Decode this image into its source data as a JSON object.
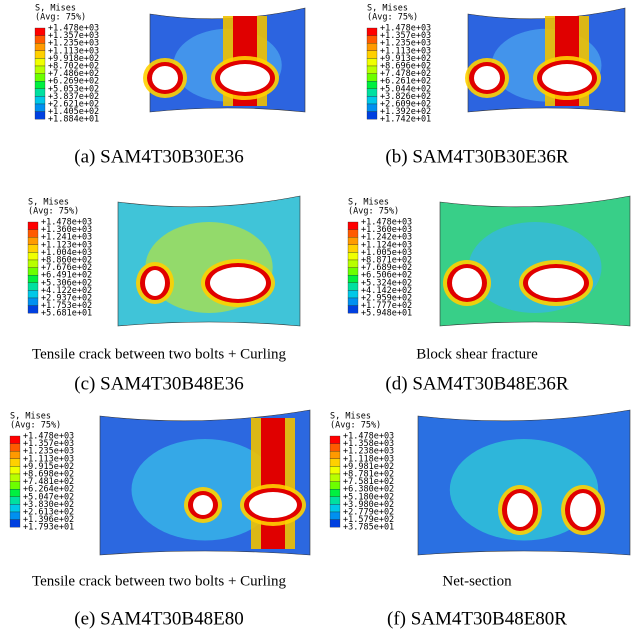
{
  "panels": [
    {
      "legend_header": "S, Mises",
      "legend_avg": "(Avg: 75%)",
      "legend_labels": [
        "+1.478e+03",
        "+1.357e+03",
        "+1.235e+03",
        "+1.113e+03",
        "+9.918e+02",
        "+8.702e+02",
        "+7.486e+02",
        "+6.269e+02",
        "+5.053e+02",
        "+3.837e+02",
        "+2.621e+02",
        "+1.405e+02",
        "+1.884e+01"
      ],
      "caption": "(a) SAM4T30B30E36"
    },
    {
      "legend_header": "S, Mises",
      "legend_avg": "(Avg: 75%)",
      "legend_labels": [
        "+1.478e+03",
        "+1.357e+03",
        "+1.235e+03",
        "+1.113e+03",
        "+9.913e+02",
        "+8.696e+02",
        "+7.478e+02",
        "+6.261e+02",
        "+5.044e+02",
        "+3.826e+02",
        "+2.609e+02",
        "+1.392e+02",
        "+1.742e+01"
      ],
      "caption": "(b) SAM4T30B30E36R"
    },
    {
      "legend_header": "S, Mises",
      "legend_avg": "(Avg: 75%)",
      "legend_labels": [
        "+1.478e+03",
        "+1.360e+03",
        "+1.241e+03",
        "+1.123e+03",
        "+1.004e+03",
        "+8.860e+02",
        "+7.676e+02",
        "+6.491e+02",
        "+5.306e+02",
        "+4.122e+02",
        "+2.937e+02",
        "+1.753e+02",
        "+5.681e+01"
      ],
      "description": "Tensile crack between two bolts + Curling",
      "caption": "(c) SAM4T30B48E36"
    },
    {
      "legend_header": "S, Mises",
      "legend_avg": "(Avg: 75%)",
      "legend_labels": [
        "+1.478e+03",
        "+1.360e+03",
        "+1.242e+03",
        "+1.124e+03",
        "+1.005e+03",
        "+8.871e+02",
        "+7.689e+02",
        "+6.506e+02",
        "+5.324e+02",
        "+4.142e+02",
        "+2.959e+02",
        "+1.777e+02",
        "+5.948e+01"
      ],
      "description": "Block shear fracture",
      "caption": "(d) SAM4T30B48E36R"
    },
    {
      "legend_header": "S, Mises",
      "legend_avg": "(Avg: 75%)",
      "legend_labels": [
        "+1.478e+03",
        "+1.357e+03",
        "+1.235e+03",
        "+1.113e+03",
        "+9.915e+02",
        "+8.698e+02",
        "+7.481e+02",
        "+6.264e+02",
        "+5.047e+02",
        "+3.830e+02",
        "+2.613e+02",
        "+1.396e+02",
        "+1.793e+01"
      ],
      "description": "Tensile crack between two bolts + Curling",
      "caption": "(e) SAM4T30B48E80"
    },
    {
      "legend_header": "S, Mises",
      "legend_avg": "(Avg: 75%)",
      "legend_labels": [
        "+1.478e+03",
        "+1.358e+03",
        "+1.238e+03",
        "+1.118e+03",
        "+9.981e+02",
        "+8.781e+02",
        "+7.581e+02",
        "+6.380e+02",
        "+5.180e+02",
        "+3.980e+02",
        "+2.779e+02",
        "+1.579e+02",
        "+3.785e+01"
      ],
      "description": "Net-section",
      "caption": "(f) SAM4T30B48E80R"
    }
  ]
}
